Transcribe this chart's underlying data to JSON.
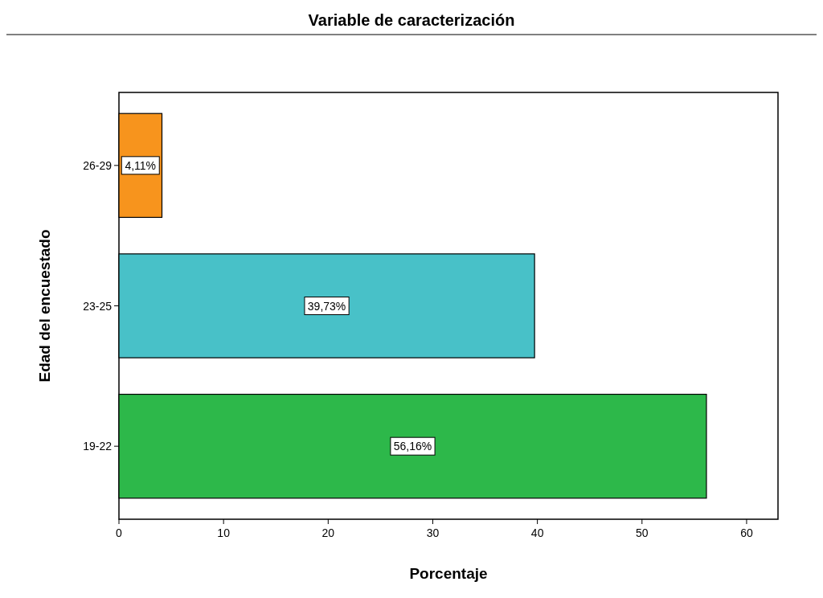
{
  "chart_data": {
    "type": "bar",
    "orientation": "horizontal",
    "title": "Variable de caracterización",
    "xlabel": "Porcentaje",
    "ylabel": "Edad del encuestado",
    "categories": [
      "26-29",
      "23-25",
      "19-22"
    ],
    "values": [
      4.11,
      39.73,
      56.16
    ],
    "colors": [
      "#f7941d",
      "#48c1c8",
      "#2db84a"
    ],
    "value_labels": [
      "4,11%",
      "39,73%",
      "56,16%"
    ],
    "xlim": [
      0,
      63
    ],
    "xticks": [
      0,
      10,
      20,
      30,
      40,
      50,
      60
    ]
  }
}
